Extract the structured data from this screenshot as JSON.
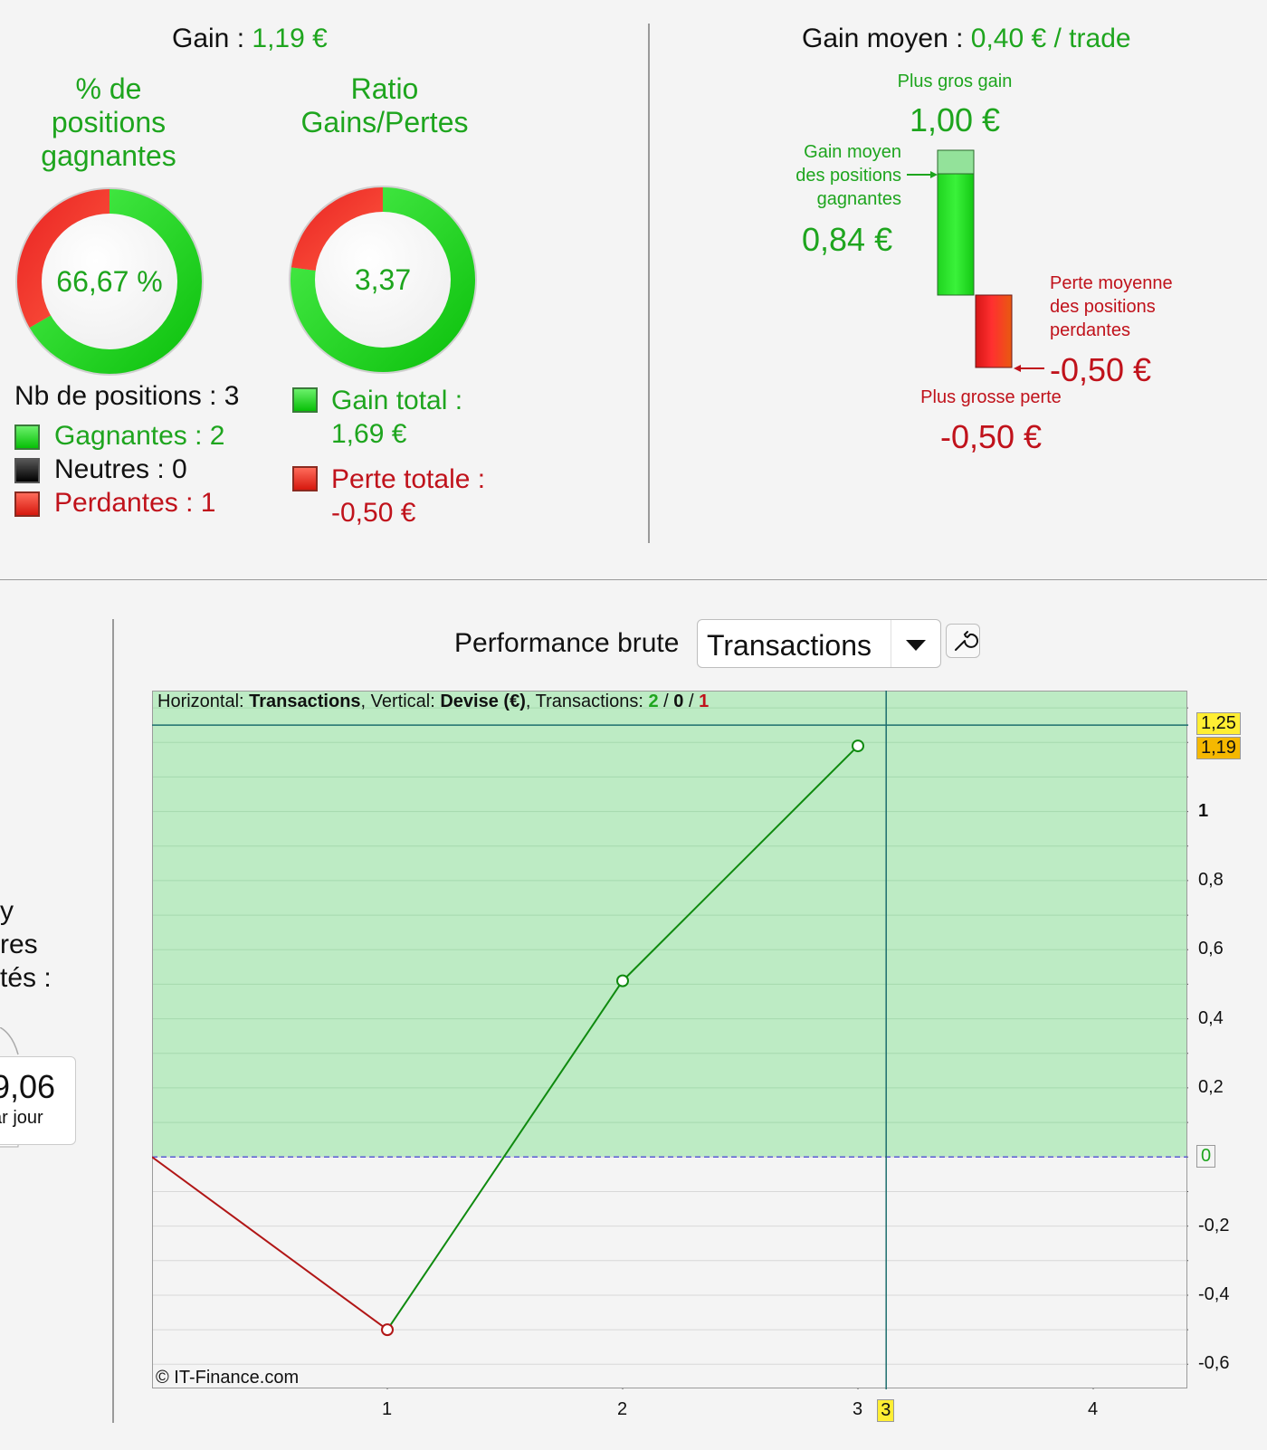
{
  "summary": {
    "gain_label": "Gain :",
    "gain_value": "1,19 €",
    "winning_pct": {
      "title_line1": "% de",
      "title_line2": "positions",
      "title_line3": "gagnantes",
      "value": "66,67 %",
      "fraction": 0.6667
    },
    "ratio": {
      "title_line1": "Ratio",
      "title_line2": "Gains/Pertes",
      "value": "3,37",
      "fraction": 0.7713
    },
    "positions_count": "Nb de positions : 3",
    "winners": "Gagnantes : 2",
    "neutral": "Neutres : 0",
    "losers": "Perdantes : 1",
    "total_gain_label": "Gain total :",
    "total_gain_value": "1,69 €",
    "total_loss_label": "Perte totale :",
    "total_loss_value": "-0,50 €"
  },
  "average": {
    "title_label": "Gain moyen :",
    "title_value": "0,40 € / trade",
    "biggest_gain_label": "Plus gros gain",
    "biggest_gain_value": "1,00 €",
    "avg_win_line1": "Gain moyen",
    "avg_win_line2": "des positions",
    "avg_win_line3": "gagnantes",
    "avg_win_value": "0,84 €",
    "avg_loss_line1": "Perte moyenne",
    "avg_loss_line2": "des positions",
    "avg_loss_line3": "perdantes",
    "avg_loss_value": "-0,50 €",
    "biggest_loss_label": "Plus grosse perte",
    "biggest_loss_value": "-0,50 €"
  },
  "left_cut": {
    "line1": "y",
    "line2": "res",
    "line3": "tés :",
    "value": "9,06",
    "sub": "ar jour"
  },
  "performance": {
    "title": "Performance brute",
    "selector_value": "Transactions",
    "info_prefix": "Horizontal: ",
    "info_h": "Transactions",
    "info_mid": ", Vertical: ",
    "info_v": "Devise (€)",
    "info_tr": ", Transactions: ",
    "info_win": "2",
    "info_sep1": " / ",
    "info_neu": "0",
    "info_sep2": " / ",
    "info_loss": "1",
    "copyright": "© IT-Finance.com",
    "tag_top": "1,25",
    "tag_last": "1,19",
    "tag_zero": "0",
    "tag_cursor": "3"
  },
  "colors": {
    "green": "#1ea51e",
    "red": "#c0121b",
    "chart_fill": "#bdebc4",
    "cursor": "#1d6e6e"
  },
  "chart_data": {
    "type": "line",
    "xlabel": "",
    "ylabel": "",
    "x": [
      0,
      1,
      2,
      3
    ],
    "values": [
      0,
      -0.5,
      0.51,
      1.19
    ],
    "xlim": [
      0,
      4.4
    ],
    "ylim": [
      -0.67,
      1.35
    ],
    "x_ticks": [
      "1",
      "2",
      "3",
      "4"
    ],
    "y_ticks": [
      "1",
      "0,8",
      "0,6",
      "0,4",
      "0,2",
      "-0,2",
      "-0,4",
      "-0,6"
    ],
    "cursor_x": 3.12,
    "max_line": 1.25,
    "grid": true
  }
}
